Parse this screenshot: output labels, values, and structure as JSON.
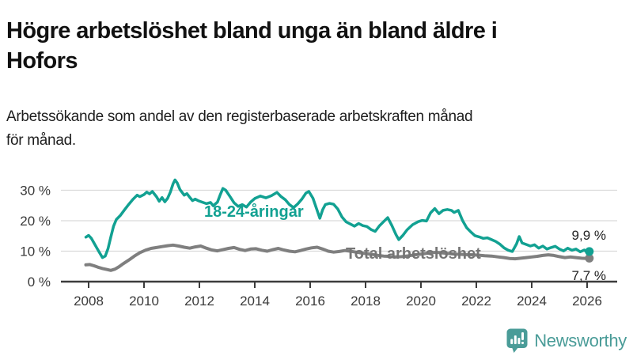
{
  "header": {
    "title_line1": "Högre arbetslöshet bland unga än bland äldre i",
    "title_line2": "Hofors",
    "subtitle_line1": "Arbetssökande som andel av den registerbaserade arbetskraften månad",
    "subtitle_line2": "för månad."
  },
  "chart_data": {
    "type": "line",
    "title": "Högre arbetslöshet bland unga än bland äldre i Hofors",
    "subtitle": "Arbetssökande som andel av den registerbaserade arbetskraften månad för månad.",
    "x_axis": {
      "ticks": [
        2008,
        2010,
        2012,
        2014,
        2016,
        2018,
        2020,
        2022,
        2024,
        2026
      ],
      "range": [
        2007.0,
        2027.1
      ]
    },
    "y_axis": {
      "ticks": [
        0,
        10,
        20,
        30
      ],
      "tick_labels": [
        "0 %",
        "10 %",
        "20 %",
        "30 %"
      ],
      "range": [
        0,
        35
      ],
      "unit": "%"
    },
    "grid": true,
    "legend_position": "inline-labels",
    "colors": {
      "youth": "#12a192",
      "total": "#7f7f7f",
      "axis": "#3c3c3c",
      "gridline": "#dadada",
      "end_label_text": "#222222"
    },
    "series": [
      {
        "name": "Total arbetslöshet",
        "color": "#7f7f7f",
        "label_color": "#757575",
        "end_label": "7,7 %",
        "end_value": 7.7,
        "points": [
          [
            2007.9,
            5.5
          ],
          [
            2008.05,
            5.6
          ],
          [
            2008.2,
            5.2
          ],
          [
            2008.35,
            4.7
          ],
          [
            2008.5,
            4.3
          ],
          [
            2008.65,
            4.0
          ],
          [
            2008.8,
            3.7
          ],
          [
            2008.95,
            4.1
          ],
          [
            2009.1,
            4.9
          ],
          [
            2009.25,
            5.9
          ],
          [
            2009.45,
            7.1
          ],
          [
            2009.65,
            8.4
          ],
          [
            2009.85,
            9.5
          ],
          [
            2010.05,
            10.3
          ],
          [
            2010.25,
            10.9
          ],
          [
            2010.45,
            11.2
          ],
          [
            2010.65,
            11.5
          ],
          [
            2010.85,
            11.8
          ],
          [
            2011.05,
            12.0
          ],
          [
            2011.25,
            11.7
          ],
          [
            2011.45,
            11.3
          ],
          [
            2011.65,
            11.0
          ],
          [
            2011.85,
            11.4
          ],
          [
            2012.05,
            11.7
          ],
          [
            2012.25,
            11.0
          ],
          [
            2012.45,
            10.4
          ],
          [
            2012.65,
            10.1
          ],
          [
            2012.85,
            10.5
          ],
          [
            2013.05,
            10.9
          ],
          [
            2013.25,
            11.2
          ],
          [
            2013.45,
            10.6
          ],
          [
            2013.65,
            10.2
          ],
          [
            2013.85,
            10.7
          ],
          [
            2014.05,
            10.8
          ],
          [
            2014.25,
            10.3
          ],
          [
            2014.45,
            10.0
          ],
          [
            2014.65,
            10.5
          ],
          [
            2014.85,
            10.9
          ],
          [
            2015.05,
            10.4
          ],
          [
            2015.25,
            10.0
          ],
          [
            2015.45,
            9.8
          ],
          [
            2015.65,
            10.2
          ],
          [
            2015.85,
            10.7
          ],
          [
            2016.05,
            11.1
          ],
          [
            2016.25,
            11.3
          ],
          [
            2016.45,
            10.7
          ],
          [
            2016.65,
            10.0
          ],
          [
            2016.85,
            9.7
          ],
          [
            2017.05,
            9.9
          ],
          [
            2017.25,
            10.2
          ],
          [
            2017.45,
            10.0
          ],
          [
            2017.65,
            9.7
          ],
          [
            2017.85,
            9.4
          ],
          [
            2018.05,
            9.2
          ],
          [
            2018.25,
            8.9
          ],
          [
            2018.45,
            8.6
          ],
          [
            2018.65,
            8.4
          ],
          [
            2018.85,
            8.3
          ],
          [
            2019.05,
            8.1
          ],
          [
            2019.3,
            8.2
          ],
          [
            2019.55,
            8.5
          ],
          [
            2019.8,
            8.8
          ],
          [
            2020.05,
            9.1
          ],
          [
            2020.3,
            9.4
          ],
          [
            2020.55,
            9.6
          ],
          [
            2020.8,
            9.4
          ],
          [
            2021.05,
            9.2
          ],
          [
            2021.3,
            9.0
          ],
          [
            2021.55,
            8.9
          ],
          [
            2021.8,
            8.8
          ],
          [
            2022.05,
            8.7
          ],
          [
            2022.3,
            8.5
          ],
          [
            2022.55,
            8.4
          ],
          [
            2022.8,
            8.1
          ],
          [
            2023.0,
            7.9
          ],
          [
            2023.2,
            7.6
          ],
          [
            2023.4,
            7.5
          ],
          [
            2023.6,
            7.7
          ],
          [
            2023.8,
            7.9
          ],
          [
            2024.0,
            8.1
          ],
          [
            2024.2,
            8.3
          ],
          [
            2024.4,
            8.6
          ],
          [
            2024.6,
            8.8
          ],
          [
            2024.8,
            8.6
          ],
          [
            2025.0,
            8.2
          ],
          [
            2025.2,
            7.9
          ],
          [
            2025.4,
            8.1
          ],
          [
            2025.6,
            7.9
          ],
          [
            2025.8,
            7.7
          ],
          [
            2026.0,
            7.6
          ],
          [
            2026.08,
            7.7
          ]
        ]
      },
      {
        "name": "18-24-åringar",
        "color": "#12a192",
        "label_color": "#12a192",
        "end_label": "9,9 %",
        "end_value": 9.9,
        "points": [
          [
            2007.9,
            14.6
          ],
          [
            2008.0,
            15.2
          ],
          [
            2008.1,
            14.2
          ],
          [
            2008.2,
            12.6
          ],
          [
            2008.3,
            11.0
          ],
          [
            2008.4,
            9.4
          ],
          [
            2008.5,
            7.9
          ],
          [
            2008.6,
            8.4
          ],
          [
            2008.7,
            10.8
          ],
          [
            2008.8,
            14.6
          ],
          [
            2008.9,
            18.2
          ],
          [
            2009.0,
            20.4
          ],
          [
            2009.15,
            21.8
          ],
          [
            2009.3,
            23.6
          ],
          [
            2009.45,
            25.4
          ],
          [
            2009.6,
            27.0
          ],
          [
            2009.75,
            28.4
          ],
          [
            2009.85,
            27.9
          ],
          [
            2010.0,
            28.6
          ],
          [
            2010.1,
            29.4
          ],
          [
            2010.2,
            28.8
          ],
          [
            2010.3,
            29.6
          ],
          [
            2010.45,
            27.9
          ],
          [
            2010.55,
            26.4
          ],
          [
            2010.65,
            27.6
          ],
          [
            2010.75,
            26.2
          ],
          [
            2010.85,
            27.3
          ],
          [
            2010.95,
            29.4
          ],
          [
            2011.05,
            32.1
          ],
          [
            2011.12,
            33.4
          ],
          [
            2011.2,
            32.4
          ],
          [
            2011.3,
            30.2
          ],
          [
            2011.45,
            28.4
          ],
          [
            2011.55,
            28.9
          ],
          [
            2011.65,
            27.7
          ],
          [
            2011.75,
            26.6
          ],
          [
            2011.85,
            27.1
          ],
          [
            2011.95,
            26.6
          ],
          [
            2012.1,
            26.1
          ],
          [
            2012.25,
            25.6
          ],
          [
            2012.4,
            26.0
          ],
          [
            2012.5,
            24.9
          ],
          [
            2012.65,
            26.1
          ],
          [
            2012.75,
            28.5
          ],
          [
            2012.85,
            30.6
          ],
          [
            2012.95,
            30.0
          ],
          [
            2013.1,
            28.0
          ],
          [
            2013.25,
            25.9
          ],
          [
            2013.4,
            24.7
          ],
          [
            2013.55,
            25.3
          ],
          [
            2013.7,
            24.5
          ],
          [
            2013.85,
            26.1
          ],
          [
            2014.0,
            27.3
          ],
          [
            2014.2,
            28.1
          ],
          [
            2014.4,
            27.5
          ],
          [
            2014.6,
            28.2
          ],
          [
            2014.8,
            29.3
          ],
          [
            2014.95,
            27.9
          ],
          [
            2015.1,
            26.9
          ],
          [
            2015.25,
            25.3
          ],
          [
            2015.4,
            24.3
          ],
          [
            2015.55,
            25.5
          ],
          [
            2015.7,
            27.1
          ],
          [
            2015.85,
            29.1
          ],
          [
            2015.95,
            29.6
          ],
          [
            2016.1,
            27.4
          ],
          [
            2016.25,
            23.4
          ],
          [
            2016.35,
            20.8
          ],
          [
            2016.45,
            23.6
          ],
          [
            2016.55,
            25.3
          ],
          [
            2016.7,
            25.7
          ],
          [
            2016.85,
            25.4
          ],
          [
            2017.0,
            23.8
          ],
          [
            2017.15,
            21.2
          ],
          [
            2017.3,
            19.6
          ],
          [
            2017.45,
            18.9
          ],
          [
            2017.6,
            18.2
          ],
          [
            2017.75,
            19.1
          ],
          [
            2017.9,
            18.4
          ],
          [
            2018.05,
            18.1
          ],
          [
            2018.2,
            17.1
          ],
          [
            2018.35,
            16.5
          ],
          [
            2018.5,
            18.3
          ],
          [
            2018.65,
            19.7
          ],
          [
            2018.8,
            21.0
          ],
          [
            2018.95,
            18.4
          ],
          [
            2019.1,
            15.4
          ],
          [
            2019.2,
            13.8
          ],
          [
            2019.35,
            15.2
          ],
          [
            2019.5,
            17.0
          ],
          [
            2019.7,
            18.7
          ],
          [
            2019.9,
            19.7
          ],
          [
            2020.05,
            20.1
          ],
          [
            2020.2,
            19.9
          ],
          [
            2020.35,
            22.6
          ],
          [
            2020.5,
            24.0
          ],
          [
            2020.65,
            22.3
          ],
          [
            2020.8,
            23.4
          ],
          [
            2020.95,
            23.7
          ],
          [
            2021.1,
            23.4
          ],
          [
            2021.2,
            22.7
          ],
          [
            2021.35,
            23.4
          ],
          [
            2021.5,
            20.1
          ],
          [
            2021.65,
            17.7
          ],
          [
            2021.8,
            16.3
          ],
          [
            2021.95,
            15.1
          ],
          [
            2022.1,
            14.7
          ],
          [
            2022.25,
            14.2
          ],
          [
            2022.4,
            14.4
          ],
          [
            2022.55,
            13.8
          ],
          [
            2022.7,
            13.2
          ],
          [
            2022.85,
            12.3
          ],
          [
            2023.0,
            11.1
          ],
          [
            2023.15,
            10.3
          ],
          [
            2023.3,
            9.9
          ],
          [
            2023.45,
            12.4
          ],
          [
            2023.55,
            14.8
          ],
          [
            2023.65,
            12.7
          ],
          [
            2023.8,
            12.2
          ],
          [
            2023.95,
            11.7
          ],
          [
            2024.1,
            12.1
          ],
          [
            2024.25,
            11.0
          ],
          [
            2024.4,
            11.7
          ],
          [
            2024.55,
            10.7
          ],
          [
            2024.7,
            11.2
          ],
          [
            2024.85,
            11.6
          ],
          [
            2025.0,
            10.7
          ],
          [
            2025.15,
            10.1
          ],
          [
            2025.3,
            11.0
          ],
          [
            2025.45,
            10.3
          ],
          [
            2025.6,
            10.7
          ],
          [
            2025.75,
            9.8
          ],
          [
            2025.9,
            10.4
          ],
          [
            2026.0,
            9.6
          ],
          [
            2026.08,
            9.9
          ]
        ]
      }
    ]
  },
  "logo": {
    "name": "Newsworthy",
    "color": "#4a9c98",
    "icon": "newsworthy-chart-bubble-icon"
  }
}
